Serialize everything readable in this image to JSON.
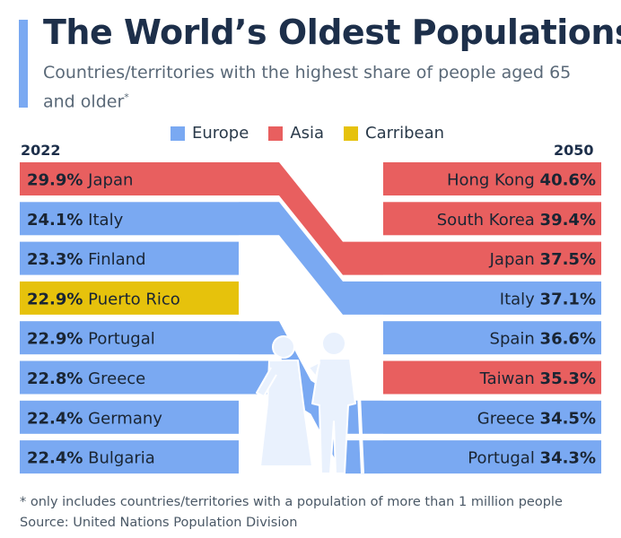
{
  "title": "The World’s Oldest Populations",
  "subtitle": "Countries/territories with the highest share of people aged 65 and older",
  "subtitle_mark": "*",
  "legend": [
    {
      "label": "Europe",
      "color": "#7aa9f2"
    },
    {
      "label": "Asia",
      "color": "#e85f5f"
    },
    {
      "label": "Carribean",
      "color": "#e6c20c"
    }
  ],
  "chart_data": {
    "type": "slope-ranking",
    "title": "The World’s Oldest Populations",
    "unit": "% of population aged 65+",
    "left_label": "2022",
    "right_label": "2050",
    "left": [
      {
        "name": "Japan",
        "value": "29.9%",
        "region": "Asia"
      },
      {
        "name": "Italy",
        "value": "24.1%",
        "region": "Europe"
      },
      {
        "name": "Finland",
        "value": "23.3%",
        "region": "Europe"
      },
      {
        "name": "Puerto Rico",
        "value": "22.9%",
        "region": "Carribean"
      },
      {
        "name": "Portugal",
        "value": "22.9%",
        "region": "Europe"
      },
      {
        "name": "Greece",
        "value": "22.8%",
        "region": "Europe"
      },
      {
        "name": "Germany",
        "value": "22.4%",
        "region": "Europe"
      },
      {
        "name": "Bulgaria",
        "value": "22.4%",
        "region": "Europe"
      }
    ],
    "right": [
      {
        "name": "Hong Kong",
        "value": "40.6%",
        "region": "Asia"
      },
      {
        "name": "South Korea",
        "value": "39.4%",
        "region": "Asia"
      },
      {
        "name": "Japan",
        "value": "37.5%",
        "region": "Asia"
      },
      {
        "name": "Italy",
        "value": "37.1%",
        "region": "Europe"
      },
      {
        "name": "Spain",
        "value": "36.6%",
        "region": "Europe"
      },
      {
        "name": "Taiwan",
        "value": "35.3%",
        "region": "Asia"
      },
      {
        "name": "Greece",
        "value": "34.5%",
        "region": "Europe"
      },
      {
        "name": "Portugal",
        "value": "34.3%",
        "region": "Europe"
      }
    ]
  },
  "footnote": "* only includes countries/territories with a population of more than 1 million people",
  "source": "Source: United Nations Population Division"
}
